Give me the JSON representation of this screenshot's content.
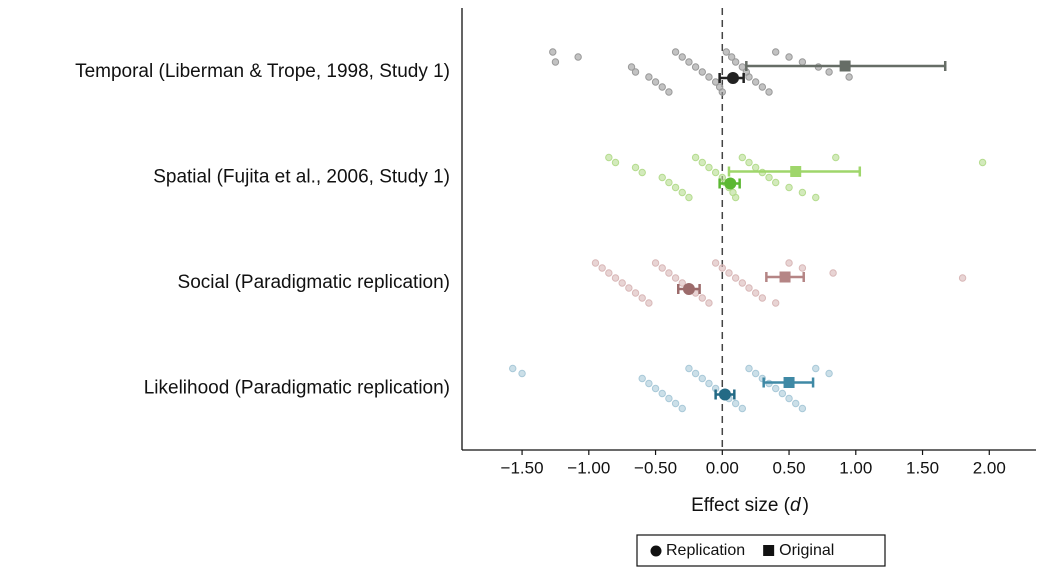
{
  "chart_data": {
    "type": "forest",
    "xlim": [
      -1.95,
      2.35
    ],
    "xticks": [
      {
        "value": -1.5,
        "label": "−1.50"
      },
      {
        "value": -1,
        "label": "−1.00"
      },
      {
        "value": -0.5,
        "label": "−0.50"
      },
      {
        "value": 0,
        "label": "0.00"
      },
      {
        "value": 0.5,
        "label": "0.50"
      },
      {
        "value": 1,
        "label": "1.00"
      },
      {
        "value": 1.5,
        "label": "1.50"
      },
      {
        "value": 2,
        "label": "2.00"
      }
    ],
    "xlabel": [
      "Effect size (",
      "d",
      ")"
    ],
    "reference_x": 0,
    "series": [
      {
        "name": "Replication",
        "marker": "circle",
        "color": "#111111"
      },
      {
        "name": "Original",
        "marker": "square",
        "color": "#111111"
      }
    ],
    "rows": [
      {
        "label": "Temporal (Liberman & Trope, 1998, Study 1)",
        "point_color": "#9a9a9a",
        "replication_color": "#222222",
        "original_color": "#666d66",
        "points": [
          -1.27,
          -1.08,
          -1.25,
          -0.68,
          -0.65,
          -0.55,
          -0.5,
          -0.45,
          -0.4,
          -0.35,
          -0.3,
          -0.25,
          -0.2,
          -0.15,
          -0.1,
          -0.05,
          -0.02,
          0,
          0.03,
          0.07,
          0.1,
          0.15,
          0.18,
          0.2,
          0.25,
          0.3,
          0.35,
          0.4,
          0.5,
          0.6,
          0.72,
          0.8,
          0.95
        ],
        "replication": {
          "estimate": 0.08,
          "ci": [
            -0.02,
            0.16
          ]
        },
        "original": {
          "estimate": 0.92,
          "ci": [
            0.18,
            1.67
          ]
        }
      },
      {
        "label": "Spatial (Fujita et al., 2006, Study 1)",
        "point_color": "#b5dc8f",
        "replication_color": "#5cb833",
        "original_color": "#9fd66b",
        "points": [
          -0.85,
          -0.8,
          -0.65,
          -0.6,
          -0.45,
          -0.4,
          -0.35,
          -0.3,
          -0.25,
          -0.2,
          -0.15,
          -0.1,
          -0.05,
          0,
          0.02,
          0.05,
          0.08,
          0.1,
          0.15,
          0.2,
          0.25,
          0.3,
          0.35,
          0.4,
          0.5,
          0.6,
          0.7,
          0.85,
          1.95
        ],
        "replication": {
          "estimate": 0.06,
          "ci": [
            -0.02,
            0.13
          ]
        },
        "original": {
          "estimate": 0.55,
          "ci": [
            0.05,
            1.03
          ]
        }
      },
      {
        "label": "Social (Paradigmatic replication)",
        "point_color": "#d9b8b8",
        "replication_color": "#9c6b6b",
        "original_color": "#b58585",
        "points": [
          -0.95,
          -0.9,
          -0.85,
          -0.8,
          -0.75,
          -0.7,
          -0.65,
          -0.6,
          -0.55,
          -0.5,
          -0.45,
          -0.4,
          -0.35,
          -0.3,
          -0.25,
          -0.2,
          -0.15,
          -0.1,
          -0.05,
          0,
          0.05,
          0.1,
          0.15,
          0.2,
          0.25,
          0.3,
          0.4,
          0.5,
          0.6,
          0.83,
          1.8
        ],
        "replication": {
          "estimate": -0.25,
          "ci": [
            -0.33,
            -0.17
          ]
        },
        "original": {
          "estimate": 0.47,
          "ci": [
            0.33,
            0.61
          ]
        }
      },
      {
        "label": "Likelihood (Paradigmatic replication)",
        "point_color": "#a9c9d8",
        "replication_color": "#236a85",
        "original_color": "#3f89a5",
        "points": [
          -1.57,
          -1.5,
          -0.6,
          -0.55,
          -0.5,
          -0.45,
          -0.4,
          -0.35,
          -0.3,
          -0.25,
          -0.2,
          -0.15,
          -0.1,
          -0.05,
          0,
          0.05,
          0.1,
          0.15,
          0.2,
          0.25,
          0.3,
          0.35,
          0.4,
          0.45,
          0.5,
          0.55,
          0.6,
          0.7,
          0.8
        ],
        "replication": {
          "estimate": 0.02,
          "ci": [
            -0.05,
            0.09
          ]
        },
        "original": {
          "estimate": 0.5,
          "ci": [
            0.31,
            0.68
          ]
        }
      }
    ]
  }
}
